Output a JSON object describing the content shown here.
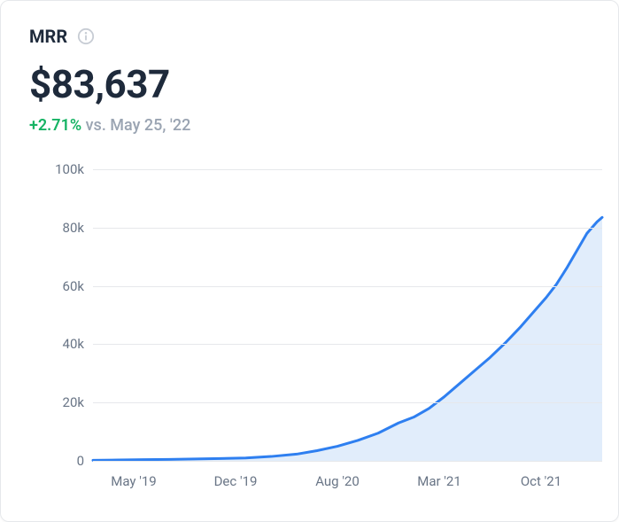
{
  "header": {
    "title": "MRR",
    "info_icon_color": "#c7ccd4",
    "value": "$83,637",
    "value_color": "#1e2a3b",
    "delta_pct": "+2.71%",
    "delta_pct_color": "#16b364",
    "delta_vs": " vs. May 25, '22",
    "delta_vs_color": "#9aa4b2"
  },
  "chart": {
    "type": "area",
    "ylim": [
      0,
      100000
    ],
    "yticks": [
      0,
      20000,
      40000,
      60000,
      80000,
      100000
    ],
    "ytick_labels": [
      "0",
      "20k",
      "40k",
      "60k",
      "80k",
      "100k"
    ],
    "xtick_positions": [
      0.08,
      0.28,
      0.48,
      0.68,
      0.88
    ],
    "xtick_labels": [
      "May '19",
      "Dec '19",
      "Aug '20",
      "Mar '21",
      "Oct '21"
    ],
    "grid_color": "#e6e8eb",
    "axis_label_color": "#697586",
    "axis_label_fontsize": 15,
    "line_color": "#2e7ff0",
    "line_width": 3,
    "fill_color": "#e1edfb",
    "fill_opacity": 1.0,
    "background_color": "#ffffff",
    "series": [
      {
        "x": 0.0,
        "y": 200
      },
      {
        "x": 0.05,
        "y": 300
      },
      {
        "x": 0.1,
        "y": 400
      },
      {
        "x": 0.15,
        "y": 500
      },
      {
        "x": 0.2,
        "y": 650
      },
      {
        "x": 0.25,
        "y": 800
      },
      {
        "x": 0.3,
        "y": 1000
      },
      {
        "x": 0.35,
        "y": 1500
      },
      {
        "x": 0.4,
        "y": 2300
      },
      {
        "x": 0.44,
        "y": 3500
      },
      {
        "x": 0.48,
        "y": 5000
      },
      {
        "x": 0.52,
        "y": 7000
      },
      {
        "x": 0.56,
        "y": 9500
      },
      {
        "x": 0.6,
        "y": 13000
      },
      {
        "x": 0.63,
        "y": 15000
      },
      {
        "x": 0.66,
        "y": 18000
      },
      {
        "x": 0.69,
        "y": 22000
      },
      {
        "x": 0.72,
        "y": 26500
      },
      {
        "x": 0.75,
        "y": 31000
      },
      {
        "x": 0.78,
        "y": 35500
      },
      {
        "x": 0.81,
        "y": 40500
      },
      {
        "x": 0.84,
        "y": 46000
      },
      {
        "x": 0.87,
        "y": 52000
      },
      {
        "x": 0.89,
        "y": 56000
      },
      {
        "x": 0.91,
        "y": 60500
      },
      {
        "x": 0.93,
        "y": 66000
      },
      {
        "x": 0.95,
        "y": 72000
      },
      {
        "x": 0.97,
        "y": 78000
      },
      {
        "x": 0.99,
        "y": 82000
      },
      {
        "x": 1.0,
        "y": 83500
      }
    ]
  }
}
